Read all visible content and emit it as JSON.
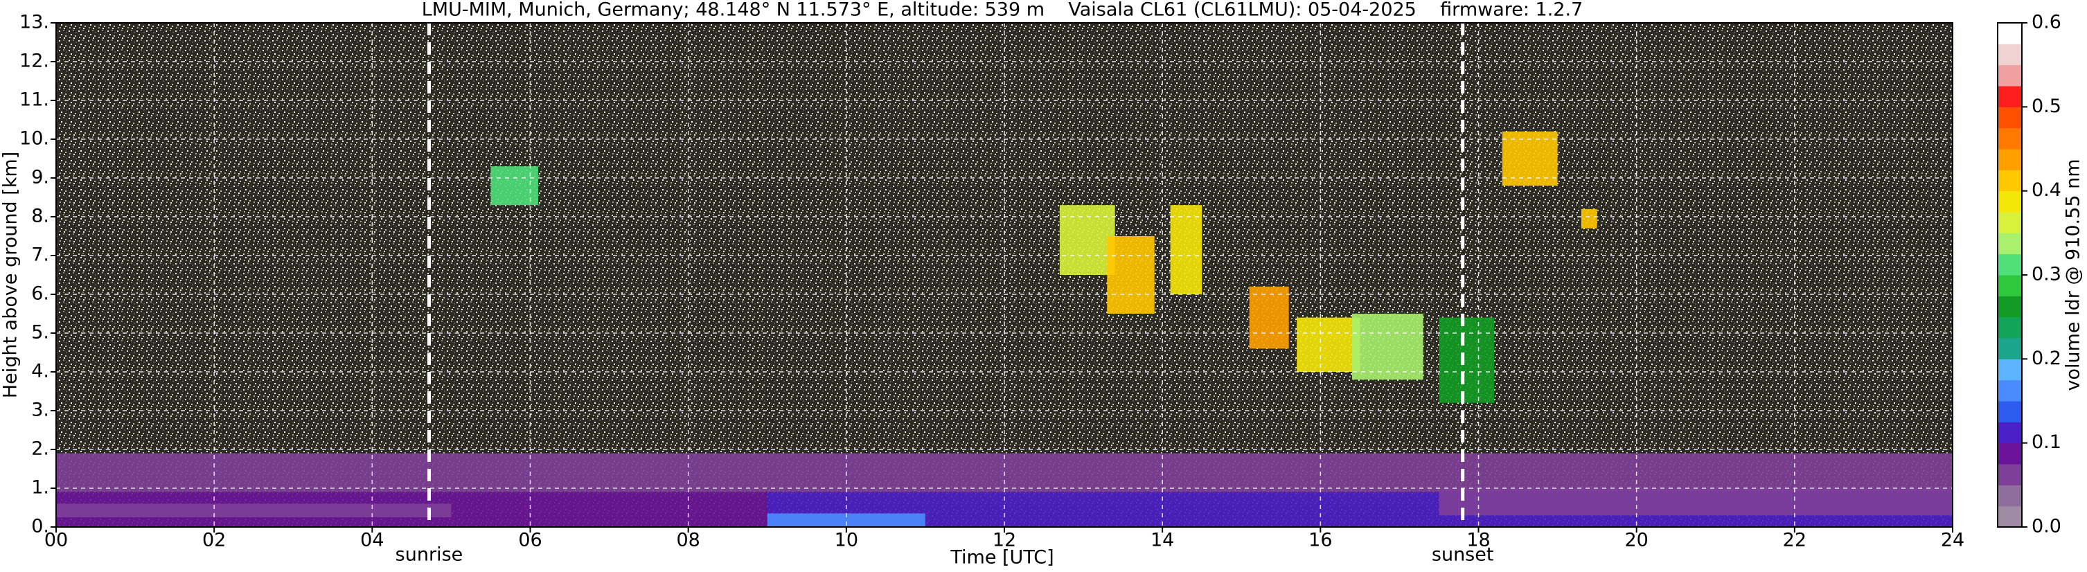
{
  "chart_data": {
    "type": "heatmap",
    "title": "LMU-MIM, Munich, Germany; 48.148° N 11.573° E, altitude: 539 m    Vaisala CL61 (CL61LMU): 05-04-2025    firmware: 1.2.7",
    "xlabel": "Time [UTC]",
    "ylabel": "Height above ground [km]",
    "colorbar_label": "volume ldr @ 910.55 nm",
    "xlim": [
      0,
      24
    ],
    "ylim": [
      0,
      13
    ],
    "clim": [
      0,
      0.6
    ],
    "xticks": [
      {
        "value": 0,
        "label": "00"
      },
      {
        "value": 2,
        "label": "02"
      },
      {
        "value": 4,
        "label": "04"
      },
      {
        "value": 6,
        "label": "06"
      },
      {
        "value": 8,
        "label": "08"
      },
      10,
      12,
      14,
      16,
      18,
      20,
      22,
      24
    ],
    "yticks": [
      {
        "value": 0,
        "label": "0."
      },
      {
        "value": 1,
        "label": "1."
      },
      {
        "value": 2,
        "label": "2."
      },
      {
        "value": 3,
        "label": "3."
      },
      {
        "value": 4,
        "label": "4."
      },
      {
        "value": 5,
        "label": "5."
      },
      {
        "value": 6,
        "label": "6."
      },
      {
        "value": 7,
        "label": "7."
      },
      {
        "value": 8,
        "label": "8."
      },
      {
        "value": 9,
        "label": "9."
      },
      {
        "value": 10,
        "label": "10."
      },
      {
        "value": 11,
        "label": "11."
      },
      {
        "value": 12,
        "label": "12."
      },
      {
        "value": 13,
        "label": "13."
      }
    ],
    "cticks": [
      {
        "value": 0,
        "label": "0.0"
      },
      0.1,
      0.2,
      0.3,
      0.4,
      0.5,
      0.6
    ],
    "colors": [
      "#9f8ba3",
      "#8f6d9c",
      "#7d3f98",
      "#6b1499",
      "#4b1fc8",
      "#2f5cf0",
      "#4a8cff",
      "#5fb4ff",
      "#1aa58c",
      "#12a55a",
      "#139c25",
      "#2fc83c",
      "#4fe07a",
      "#a8f06e",
      "#d8f23c",
      "#f5e60a",
      "#ffc800",
      "#ffa000",
      "#ff7800",
      "#ff5000",
      "#ff1e1e",
      "#f0a0a0",
      "#f0d2d2",
      "#ffffff"
    ],
    "grid": true,
    "annotations": [
      {
        "text": "sunrise",
        "x": 4.72
      },
      {
        "text": "sunset",
        "x": 17.8
      }
    ],
    "features": [
      {
        "x": [
          0,
          24
        ],
        "y": [
          0.9,
          1.9
        ],
        "value": 0.06
      },
      {
        "x": [
          0,
          9
        ],
        "y": [
          0,
          0.9
        ],
        "value": 0.09
      },
      {
        "x": [
          0,
          5
        ],
        "y": [
          0.25,
          0.6
        ],
        "value": 0.06
      },
      {
        "x": [
          9,
          24
        ],
        "y": [
          0,
          0.9
        ],
        "value": 0.1
      },
      {
        "x": [
          9,
          11
        ],
        "y": [
          0,
          0.35
        ],
        "value": 0.15
      },
      {
        "x": [
          17.5,
          24
        ],
        "y": [
          0.3,
          1.0
        ],
        "value": 0.06
      },
      {
        "x": [
          5.5,
          6.1
        ],
        "y": [
          8.3,
          9.3
        ],
        "value": 0.3
      },
      {
        "x": [
          12.7,
          13.4
        ],
        "y": [
          6.5,
          8.3
        ],
        "value": 0.35
      },
      {
        "x": [
          13.3,
          13.9
        ],
        "y": [
          5.5,
          7.5
        ],
        "value": 0.4
      },
      {
        "x": [
          14.1,
          14.5
        ],
        "y": [
          6,
          8.3
        ],
        "value": 0.38
      },
      {
        "x": [
          15.1,
          15.6
        ],
        "y": [
          4.6,
          6.2
        ],
        "value": 0.44
      },
      {
        "x": [
          15.7,
          16.5
        ],
        "y": [
          4,
          5.4
        ],
        "value": 0.38
      },
      {
        "x": [
          16.4,
          17.3
        ],
        "y": [
          3.8,
          5.5
        ],
        "value": 0.33
      },
      {
        "x": [
          17.5,
          18.2
        ],
        "y": [
          3.2,
          5.4
        ],
        "value": 0.25
      },
      {
        "x": [
          18.3,
          19
        ],
        "y": [
          8.8,
          10.2
        ],
        "value": 0.4
      },
      {
        "x": [
          19.3,
          19.5
        ],
        "y": [
          7.7,
          8.2
        ],
        "value": 0.4
      }
    ]
  }
}
